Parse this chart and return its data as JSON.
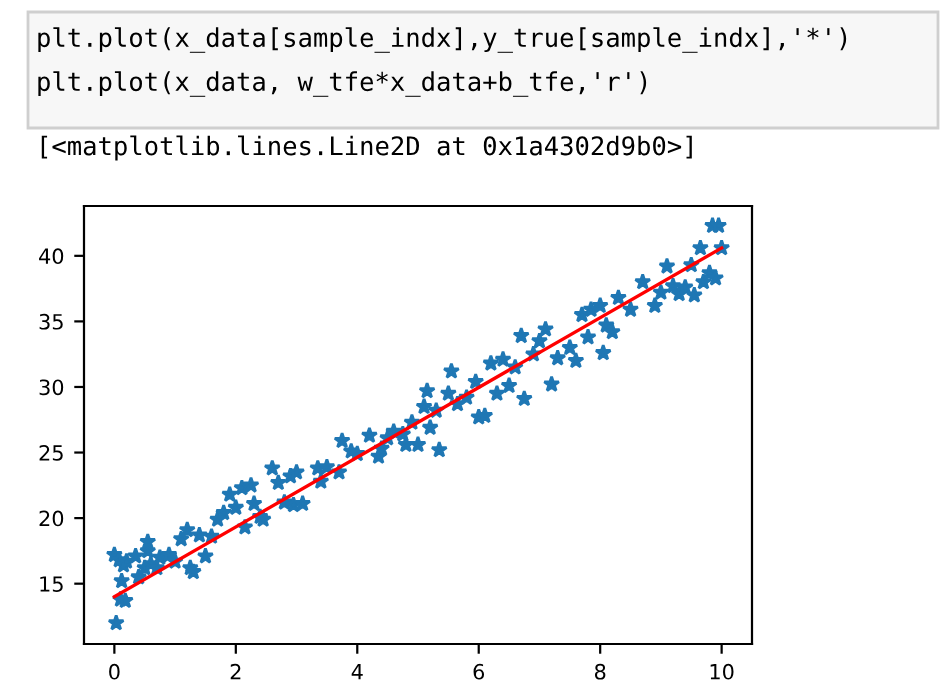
{
  "chart_data": {
    "type": "scatter",
    "annotations": [
      "plt.plot(x_data[sample_indx],y_true[sample_indx],'*')",
      "plt.plot(x_data, w_tfe*x_data+b_tfe,'r')",
      "[<matplotlib.lines.Line2D at 0x1a4302d9b0>]"
    ],
    "xlim": [
      -0.5,
      10.5
    ],
    "ylim": [
      10.4,
      43.8
    ],
    "xticks": [
      0,
      2,
      4,
      6,
      8,
      10
    ],
    "yticks": [
      15,
      20,
      25,
      30,
      35,
      40
    ],
    "grid": false,
    "legend": false,
    "series": [
      {
        "marker": "star",
        "color": "#1f77b4",
        "x": [
          0,
          0.03,
          0.08,
          0.1,
          0.12,
          0.15,
          0.18,
          0.2,
          0.35,
          0.4,
          0.5,
          0.55,
          0.55,
          0.6,
          0.7,
          0.75,
          0.9,
          1.0,
          1.1,
          1.2,
          1.25,
          1.3,
          1.4,
          1.5,
          1.6,
          1.7,
          1.8,
          1.9,
          2.0,
          2.1,
          2.15,
          2.25,
          2.3,
          2.4,
          2.45,
          2.6,
          2.7,
          2.8,
          2.9,
          2.95,
          3.0,
          3.1,
          3.35,
          3.4,
          3.5,
          3.7,
          3.75,
          3.9,
          4.0,
          4.2,
          4.35,
          4.4,
          4.5,
          4.6,
          4.75,
          4.8,
          4.9,
          5.0,
          5.1,
          5.15,
          5.2,
          5.3,
          5.35,
          5.5,
          5.55,
          5.65,
          5.8,
          5.95,
          6.0,
          6.1,
          6.2,
          6.3,
          6.4,
          6.5,
          6.6,
          6.7,
          6.75,
          6.9,
          7.0,
          7.1,
          7.2,
          7.3,
          7.5,
          7.6,
          7.7,
          7.8,
          7.85,
          8.0,
          8.05,
          8.1,
          8.2,
          8.3,
          8.5,
          8.7,
          8.9,
          9.0,
          9.1,
          9.2,
          9.3,
          9.4,
          9.5,
          9.55,
          9.65,
          9.7,
          9.8,
          9.85,
          9.9,
          9.95,
          10
        ],
        "values": [
          17.2,
          12,
          16.8,
          13.8,
          15.2,
          16.4,
          13.7,
          16.7,
          17.1,
          15.5,
          16.2,
          17.5,
          18.2,
          16.5,
          16.2,
          17,
          17.2,
          16.7,
          18.4,
          19.1,
          16.2,
          15.9,
          18.7,
          17.1,
          18.6,
          19.9,
          20.4,
          21.8,
          20.8,
          22.3,
          19.3,
          22.5,
          21.1,
          20.1,
          19.9,
          23.8,
          22.7,
          21.2,
          23.2,
          21,
          23.5,
          21.1,
          23.8,
          22.8,
          23.9,
          23.5,
          25.9,
          25.1,
          24.9,
          26.3,
          24.7,
          25.3,
          26.1,
          26.6,
          26.4,
          25.6,
          27.3,
          25.6,
          28.5,
          29.7,
          26.9,
          28.2,
          25.2,
          29.5,
          31.2,
          28.7,
          29.2,
          30.4,
          27.7,
          27.8,
          31.8,
          29.5,
          32.1,
          30.1,
          31.5,
          33.9,
          29.1,
          32.5,
          33.5,
          34.4,
          30.2,
          32.2,
          33,
          32,
          35.5,
          33.8,
          35.9,
          36.2,
          32.6,
          34.7,
          34.2,
          36.8,
          35.9,
          38,
          36.2,
          37.2,
          39.2,
          37.7,
          37.1,
          37.6,
          39.3,
          37,
          40.6,
          38,
          38.7,
          42.3,
          38.3,
          42.3,
          40.6
        ]
      },
      {
        "type": "line",
        "color": "#ff0000",
        "x": [
          0,
          10
        ],
        "values": [
          14,
          40.6
        ]
      }
    ]
  }
}
